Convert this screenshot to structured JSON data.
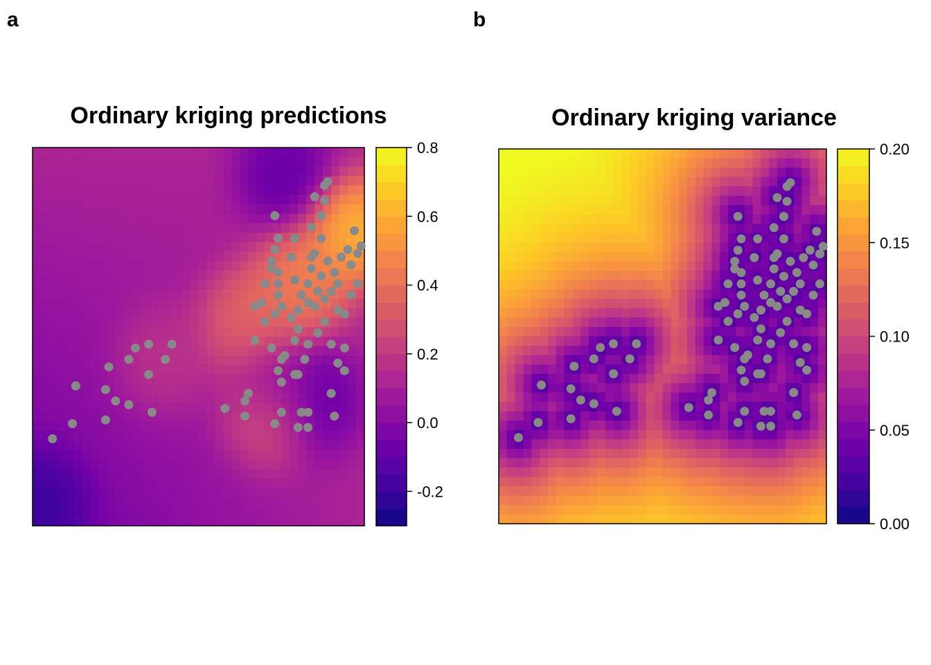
{
  "panel_a": {
    "letter": "a",
    "title": "Ordinary kriging predictions"
  },
  "panel_b": {
    "letter": "b",
    "title": "Ordinary kriging variance"
  },
  "colors": {
    "palette": [
      "#0d0887",
      "#46039f",
      "#7201a8",
      "#9c179e",
      "#bd3786",
      "#d8576b",
      "#ed7953",
      "#fb9f3a",
      "#fdca26",
      "#f0f921"
    ],
    "points": "#898989"
  },
  "chart_data": [
    {
      "type": "heatmap",
      "title": "Ordinary kriging predictions",
      "colorbar": {
        "min": -0.3,
        "max": 0.8,
        "ticks": [
          0.8,
          0.6,
          0.4,
          0.2,
          0.0,
          -0.2
        ],
        "tick_labels": [
          "0.8",
          "0.6",
          "0.4",
          "0.2",
          "0.0",
          "-0.2"
        ]
      },
      "description_of_field": "low values (purple) in south-west, high values (orange/yellow) in north-east",
      "hotspots": [
        {
          "x": 0.97,
          "y": 0.78,
          "value": 0.75
        },
        {
          "x": 0.82,
          "y": 0.65,
          "value": 0.55
        },
        {
          "x": 0.72,
          "y": 0.56,
          "value": 0.45
        },
        {
          "x": 0.64,
          "y": 0.52,
          "value": 0.4
        },
        {
          "x": 0.4,
          "y": 0.44,
          "value": 0.2
        },
        {
          "x": 0.72,
          "y": 0.3,
          "value": 0.35
        },
        {
          "x": 0.85,
          "y": 0.33,
          "value": -0.15
        },
        {
          "x": 0.76,
          "y": 0.93,
          "value": -0.15
        },
        {
          "x": 0.73,
          "y": 0.4,
          "value": -0.05
        },
        {
          "x": 0.02,
          "y": 0.05,
          "value": -0.25
        }
      ],
      "base_value": 0.12,
      "points": [
        [
          0.06,
          0.23
        ],
        [
          0.12,
          0.27
        ],
        [
          0.13,
          0.37
        ],
        [
          0.22,
          0.28
        ],
        [
          0.22,
          0.36
        ],
        [
          0.23,
          0.42
        ],
        [
          0.25,
          0.33
        ],
        [
          0.29,
          0.32
        ],
        [
          0.29,
          0.44
        ],
        [
          0.31,
          0.47
        ],
        [
          0.35,
          0.48
        ],
        [
          0.35,
          0.4
        ],
        [
          0.36,
          0.3
        ],
        [
          0.4,
          0.44
        ],
        [
          0.42,
          0.48
        ],
        [
          0.58,
          0.31
        ],
        [
          0.64,
          0.29
        ],
        [
          0.64,
          0.33
        ],
        [
          0.65,
          0.35
        ],
        [
          0.67,
          0.58
        ],
        [
          0.69,
          0.59
        ],
        [
          0.7,
          0.54
        ],
        [
          0.67,
          0.49
        ],
        [
          0.73,
          0.56
        ],
        [
          0.74,
          0.61
        ],
        [
          0.74,
          0.64
        ],
        [
          0.75,
          0.58
        ],
        [
          0.72,
          0.47
        ],
        [
          0.76,
          0.45
        ],
        [
          0.78,
          0.55
        ],
        [
          0.79,
          0.49
        ],
        [
          0.7,
          0.64
        ],
        [
          0.72,
          0.68
        ],
        [
          0.72,
          0.7
        ],
        [
          0.73,
          0.73
        ],
        [
          0.74,
          0.67
        ],
        [
          0.74,
          0.76
        ],
        [
          0.73,
          0.82
        ],
        [
          0.75,
          0.44
        ],
        [
          0.75,
          0.38
        ],
        [
          0.74,
          0.41
        ],
        [
          0.75,
          0.3
        ],
        [
          0.73,
          0.27
        ],
        [
          0.79,
          0.4
        ],
        [
          0.8,
          0.52
        ],
        [
          0.8,
          0.57
        ],
        [
          0.81,
          0.61
        ],
        [
          0.78,
          0.71
        ],
        [
          0.79,
          0.65
        ],
        [
          0.79,
          0.76
        ],
        [
          0.8,
          0.26
        ],
        [
          0.8,
          0.4
        ],
        [
          0.81,
          0.3
        ],
        [
          0.82,
          0.44
        ],
        [
          0.83,
          0.48
        ],
        [
          0.83,
          0.59
        ],
        [
          0.83,
          0.64
        ],
        [
          0.84,
          0.68
        ],
        [
          0.84,
          0.71
        ],
        [
          0.84,
          0.79
        ],
        [
          0.85,
          0.87
        ],
        [
          0.83,
          0.3
        ],
        [
          0.83,
          0.26
        ],
        [
          0.85,
          0.58
        ],
        [
          0.85,
          0.72
        ],
        [
          0.86,
          0.51
        ],
        [
          0.86,
          0.62
        ],
        [
          0.87,
          0.66
        ],
        [
          0.87,
          0.76
        ],
        [
          0.87,
          0.82
        ],
        [
          0.88,
          0.86
        ],
        [
          0.88,
          0.9
        ],
        [
          0.89,
          0.91
        ],
        [
          0.88,
          0.54
        ],
        [
          0.88,
          0.6
        ],
        [
          0.89,
          0.7
        ],
        [
          0.9,
          0.35
        ],
        [
          0.9,
          0.48
        ],
        [
          0.9,
          0.62
        ],
        [
          0.91,
          0.29
        ],
        [
          0.91,
          0.67
        ],
        [
          0.92,
          0.43
        ],
        [
          0.92,
          0.57
        ],
        [
          0.92,
          0.64
        ],
        [
          0.93,
          0.71
        ],
        [
          0.94,
          0.41
        ],
        [
          0.94,
          0.56
        ],
        [
          0.94,
          0.47
        ],
        [
          0.95,
          0.73
        ],
        [
          0.96,
          0.61
        ],
        [
          0.96,
          0.69
        ],
        [
          0.97,
          0.78
        ],
        [
          0.98,
          0.64
        ],
        [
          0.98,
          0.72
        ],
        [
          0.99,
          0.74
        ]
      ]
    },
    {
      "type": "heatmap",
      "title": "Ordinary kriging variance",
      "colorbar": {
        "min": 0.0,
        "max": 0.2,
        "ticks": [
          0.2,
          0.15,
          0.1,
          0.05,
          0.0
        ],
        "tick_labels": [
          "0.20",
          "0.15",
          "0.10",
          "0.05",
          "0.00"
        ]
      },
      "description_of_field": "low variance near sample points, increasing with distance; highest in top-left corner",
      "background_min": 0.02,
      "sill": 0.2,
      "points_same_as_panel_a": true
    }
  ]
}
